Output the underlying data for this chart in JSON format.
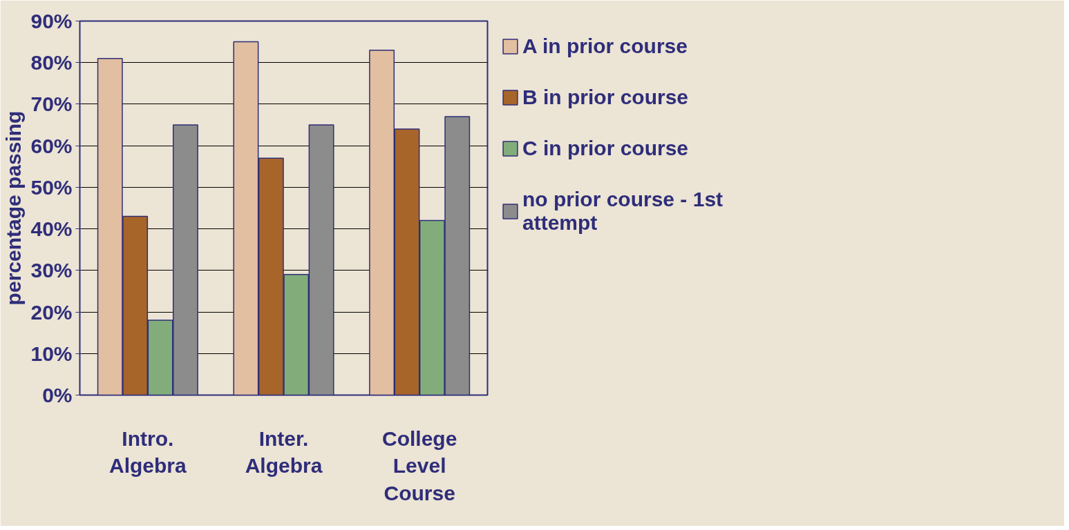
{
  "chart_data": {
    "type": "bar",
    "ylabel": "percentage passing",
    "categories": [
      "Intro. Algebra",
      "Inter. Algebra",
      "College Level Course"
    ],
    "series": [
      {
        "name": "A in prior course",
        "color": "#e2bfa0",
        "values": [
          81,
          85,
          83
        ]
      },
      {
        "name": "B in prior course",
        "color": "#a8652a",
        "values": [
          43,
          57,
          64
        ]
      },
      {
        "name": "C in prior course",
        "color": "#82ad7a",
        "values": [
          18,
          29,
          42
        ]
      },
      {
        "name": "no prior course - 1st attempt",
        "color": "#8c8c8c",
        "values": [
          65,
          65,
          67
        ]
      }
    ],
    "ylim": [
      0,
      90
    ],
    "yticks": [
      {
        "value": 0,
        "label": "0%"
      },
      {
        "value": 10,
        "label": "10%"
      },
      {
        "value": 20,
        "label": "20%"
      },
      {
        "value": 30,
        "label": "30%"
      },
      {
        "value": 40,
        "label": "40%"
      },
      {
        "value": 50,
        "label": "50%"
      },
      {
        "value": 60,
        "label": "60%"
      },
      {
        "value": 70,
        "label": "70%"
      },
      {
        "value": 80,
        "label": "80%"
      },
      {
        "value": 90,
        "label": "90%"
      }
    ],
    "grid": "y",
    "legend": "right"
  }
}
